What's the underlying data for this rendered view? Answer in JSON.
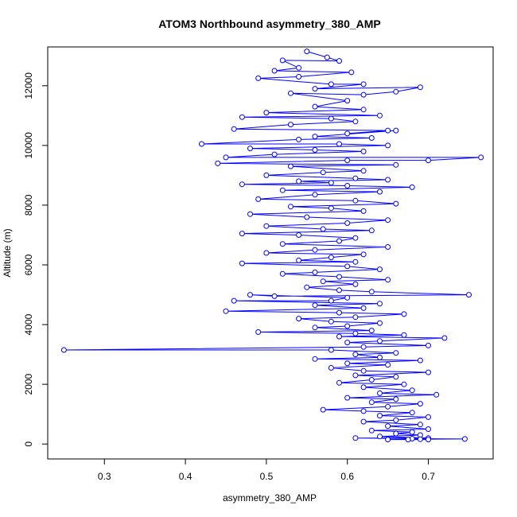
{
  "chart_data": {
    "type": "line",
    "title": "ATOM3 Northbound asymmetry_380_AMP",
    "xlabel": "asymmetry_380_AMP",
    "ylabel": "Altitude (m)",
    "xlim": [
      0.23,
      0.78
    ],
    "ylim": [
      -500,
      13300
    ],
    "x_ticks": [
      0.3,
      0.4,
      0.5,
      0.6,
      0.7
    ],
    "y_ticks": [
      0,
      2000,
      4000,
      6000,
      8000,
      10000,
      12000
    ],
    "series_color": "#0000ff",
    "markers": "open-circle",
    "series": [
      {
        "points": [
          [
            0.55,
            13150
          ],
          [
            0.575,
            12950
          ],
          [
            0.59,
            12830
          ],
          [
            0.52,
            12850
          ],
          [
            0.54,
            12600
          ],
          [
            0.51,
            12500
          ],
          [
            0.605,
            12450
          ],
          [
            0.54,
            12300
          ],
          [
            0.49,
            12250
          ],
          [
            0.58,
            12050
          ],
          [
            0.62,
            12050
          ],
          [
            0.56,
            11900
          ],
          [
            0.69,
            11950
          ],
          [
            0.66,
            11800
          ],
          [
            0.62,
            11700
          ],
          [
            0.53,
            11750
          ],
          [
            0.6,
            11500
          ],
          [
            0.56,
            11300
          ],
          [
            0.62,
            11200
          ],
          [
            0.5,
            11100
          ],
          [
            0.64,
            11000
          ],
          [
            0.47,
            10950
          ],
          [
            0.58,
            10900
          ],
          [
            0.61,
            10800
          ],
          [
            0.53,
            10700
          ],
          [
            0.46,
            10550
          ],
          [
            0.65,
            10500
          ],
          [
            0.6,
            10400
          ],
          [
            0.66,
            10500
          ],
          [
            0.56,
            10300
          ],
          [
            0.63,
            10250
          ],
          [
            0.54,
            10200
          ],
          [
            0.42,
            10050
          ],
          [
            0.59,
            10050
          ],
          [
            0.65,
            10000
          ],
          [
            0.48,
            9900
          ],
          [
            0.56,
            9850
          ],
          [
            0.62,
            9800
          ],
          [
            0.51,
            9700
          ],
          [
            0.45,
            9600
          ],
          [
            0.765,
            9600
          ],
          [
            0.7,
            9500
          ],
          [
            0.6,
            9500
          ],
          [
            0.44,
            9400
          ],
          [
            0.66,
            9350
          ],
          [
            0.53,
            9300
          ],
          [
            0.62,
            9150
          ],
          [
            0.57,
            9100
          ],
          [
            0.5,
            9000
          ],
          [
            0.61,
            8900
          ],
          [
            0.65,
            8850
          ],
          [
            0.54,
            8800
          ],
          [
            0.58,
            8750
          ],
          [
            0.47,
            8700
          ],
          [
            0.6,
            8650
          ],
          [
            0.68,
            8600
          ],
          [
            0.52,
            8500
          ],
          [
            0.64,
            8450
          ],
          [
            0.56,
            8350
          ],
          [
            0.49,
            8200
          ],
          [
            0.61,
            8150
          ],
          [
            0.66,
            8050
          ],
          [
            0.53,
            7950
          ],
          [
            0.58,
            7900
          ],
          [
            0.62,
            7800
          ],
          [
            0.48,
            7700
          ],
          [
            0.55,
            7600
          ],
          [
            0.65,
            7500
          ],
          [
            0.6,
            7400
          ],
          [
            0.5,
            7300
          ],
          [
            0.57,
            7200
          ],
          [
            0.63,
            7150
          ],
          [
            0.47,
            7050
          ],
          [
            0.54,
            7000
          ],
          [
            0.61,
            6900
          ],
          [
            0.59,
            6800
          ],
          [
            0.52,
            6700
          ],
          [
            0.65,
            6600
          ],
          [
            0.56,
            6500
          ],
          [
            0.5,
            6400
          ],
          [
            0.62,
            6350
          ],
          [
            0.58,
            6250
          ],
          [
            0.54,
            6150
          ],
          [
            0.61,
            6100
          ],
          [
            0.47,
            6050
          ],
          [
            0.6,
            5950
          ],
          [
            0.64,
            5850
          ],
          [
            0.56,
            5750
          ],
          [
            0.52,
            5700
          ],
          [
            0.59,
            5600
          ],
          [
            0.65,
            5500
          ],
          [
            0.57,
            5450
          ],
          [
            0.61,
            5350
          ],
          [
            0.55,
            5250
          ],
          [
            0.59,
            5150
          ],
          [
            0.63,
            5100
          ],
          [
            0.75,
            5000
          ],
          [
            0.51,
            4950
          ],
          [
            0.48,
            5000
          ],
          [
            0.6,
            4900
          ],
          [
            0.58,
            4800
          ],
          [
            0.46,
            4800
          ],
          [
            0.64,
            4700
          ],
          [
            0.56,
            4650
          ],
          [
            0.62,
            4550
          ],
          [
            0.45,
            4450
          ],
          [
            0.59,
            4400
          ],
          [
            0.67,
            4350
          ],
          [
            0.61,
            4250
          ],
          [
            0.54,
            4200
          ],
          [
            0.58,
            4100
          ],
          [
            0.64,
            4050
          ],
          [
            0.6,
            3950
          ],
          [
            0.56,
            3900
          ],
          [
            0.63,
            3800
          ],
          [
            0.49,
            3750
          ],
          [
            0.61,
            3700
          ],
          [
            0.67,
            3650
          ],
          [
            0.59,
            3600
          ],
          [
            0.72,
            3550
          ],
          [
            0.64,
            3450
          ],
          [
            0.6,
            3400
          ],
          [
            0.7,
            3300
          ],
          [
            0.62,
            3250
          ],
          [
            0.25,
            3150
          ],
          [
            0.58,
            3150
          ],
          [
            0.66,
            3050
          ],
          [
            0.61,
            3000
          ],
          [
            0.64,
            2900
          ],
          [
            0.56,
            2850
          ],
          [
            0.69,
            2800
          ],
          [
            0.6,
            2700
          ],
          [
            0.65,
            2650
          ],
          [
            0.58,
            2550
          ],
          [
            0.62,
            2450
          ],
          [
            0.7,
            2400
          ],
          [
            0.61,
            2300
          ],
          [
            0.66,
            2250
          ],
          [
            0.63,
            2150
          ],
          [
            0.59,
            2050
          ],
          [
            0.67,
            2000
          ],
          [
            0.62,
            1900
          ],
          [
            0.68,
            1800
          ],
          [
            0.64,
            1700
          ],
          [
            0.71,
            1650
          ],
          [
            0.6,
            1550
          ],
          [
            0.66,
            1500
          ],
          [
            0.63,
            1400
          ],
          [
            0.69,
            1350
          ],
          [
            0.65,
            1250
          ],
          [
            0.57,
            1150
          ],
          [
            0.62,
            1100
          ],
          [
            0.68,
            1050
          ],
          [
            0.64,
            950
          ],
          [
            0.7,
            900
          ],
          [
            0.66,
            800
          ],
          [
            0.62,
            750
          ],
          [
            0.69,
            650
          ],
          [
            0.65,
            600
          ],
          [
            0.7,
            500
          ],
          [
            0.63,
            450
          ],
          [
            0.68,
            400
          ],
          [
            0.66,
            350
          ],
          [
            0.69,
            300
          ],
          [
            0.64,
            250
          ],
          [
            0.7,
            200
          ],
          [
            0.61,
            200
          ],
          [
            0.68,
            180
          ],
          [
            0.745,
            170
          ],
          [
            0.69,
            160
          ],
          [
            0.65,
            150
          ],
          [
            0.7,
            150
          ],
          [
            0.675,
            150
          ]
        ]
      }
    ]
  }
}
